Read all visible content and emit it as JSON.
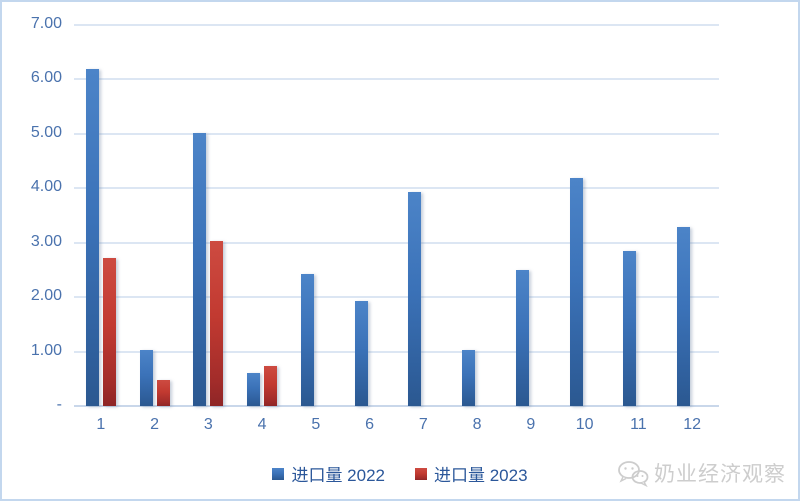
{
  "chart_data": {
    "type": "bar",
    "title": "",
    "categories": [
      "1",
      "2",
      "3",
      "4",
      "5",
      "6",
      "7",
      "8",
      "9",
      "10",
      "11",
      "12"
    ],
    "series": [
      {
        "name": "进口量 2022",
        "color": "#3b72b8",
        "values": [
          6.19,
          1.02,
          5.02,
          0.61,
          2.42,
          1.92,
          3.94,
          1.03,
          2.49,
          4.19,
          2.84,
          3.28
        ]
      },
      {
        "name": "进口量 2023",
        "color": "#c23a31",
        "values": [
          2.72,
          0.48,
          3.03,
          0.74,
          null,
          null,
          null,
          null,
          null,
          null,
          null,
          null
        ]
      }
    ],
    "y_ticks": [
      "7.00",
      "6.00",
      "5.00",
      "4.00",
      "3.00",
      "2.00",
      "1.00",
      "-"
    ],
    "ylim": [
      0,
      7
    ],
    "grid": true,
    "legend_position": "bottom"
  },
  "colors": {
    "axis_label": "#4a72ad",
    "legend_text": "#2b579a",
    "gridline": "#dce6f3",
    "frame_border": "#c3d7ee",
    "series_2022": "#3b72b8",
    "series_2023": "#c23a31",
    "watermark": "#cdcdcd"
  },
  "watermark": {
    "text": "奶业经济观察"
  }
}
